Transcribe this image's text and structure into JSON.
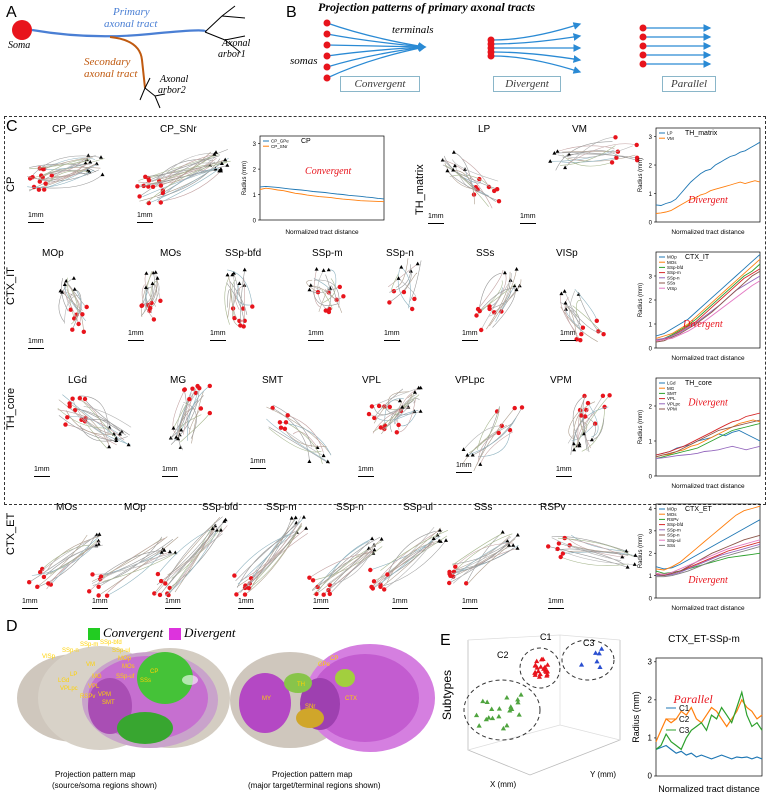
{
  "panel_a": {
    "letter": "A",
    "soma": "Soma",
    "primary": "Primary\naxonal  tract",
    "primary_l1": "Primary",
    "primary_l2": "axonal  tract",
    "secondary_l1": "Secondary",
    "secondary_l2": "axonal  tract",
    "arbor1_l1": "Axonal",
    "arbor1_l2": "arbor1",
    "arbor2_l1": "Axonal",
    "arbor2_l2": "arbor2",
    "colors": {
      "primary": "#4a7fd4",
      "secondary": "#c05a10",
      "soma": "#e8141c"
    }
  },
  "panel_b": {
    "letter": "B",
    "title": "Projection patterns of primary axonal tracts",
    "terminals": "terminals",
    "somas": "somas",
    "types": [
      "Convergent",
      "Divergent",
      "Parallel"
    ]
  },
  "panel_c": {
    "letter": "C",
    "scale": "1mm",
    "rows": [
      {
        "label": "CP",
        "regions": [
          "CP_GPe",
          "CP_SNr"
        ]
      },
      {
        "label": "TH_matrix",
        "regions": [
          "LP",
          "VM"
        ]
      },
      {
        "label": "CTX_IT",
        "regions": [
          "MOp",
          "MOs",
          "SSp-bfd",
          "SSp-m",
          "SSp-n",
          "SSs",
          "VISp"
        ]
      },
      {
        "label": "TH_core",
        "regions": [
          "LGd",
          "MG",
          "SMT",
          "VPL",
          "VPLpc",
          "VPM"
        ]
      },
      {
        "label": "CTX_ET",
        "regions": [
          "MOs",
          "MOp",
          "SSp-bfd",
          "SSp-m",
          "SSp-n",
          "SSp-ul",
          "SSs",
          "RSPv"
        ]
      }
    ]
  },
  "chart_data": [
    {
      "type": "line",
      "id": "cp",
      "title": "CP",
      "pattern": "Convergent",
      "xlabel": "Normalized tract distance",
      "ylabel": "Radius (mm)",
      "ylim": [
        0,
        3.3
      ],
      "yticks": [
        0,
        1,
        2,
        3
      ],
      "series": [
        {
          "name": "CP_GPe",
          "color": "#1f77b4",
          "values": [
            1.3,
            1.32,
            1.3,
            1.28,
            1.25,
            1.22,
            1.2,
            1.18,
            1.15,
            1.12,
            1.1,
            1.08,
            1.05,
            1.02,
            1.0,
            0.97,
            0.95,
            0.93,
            0.9,
            0.88,
            0.85,
            0.83
          ]
        },
        {
          "name": "CP_SNr",
          "color": "#ff7f0e",
          "values": [
            1.2,
            1.25,
            1.22,
            1.18,
            1.15,
            1.1,
            1.05,
            1.02,
            0.98,
            0.95,
            0.92,
            0.9,
            0.88,
            0.85,
            0.82,
            0.8,
            0.78,
            0.76,
            0.75,
            0.74,
            0.73,
            0.72
          ]
        }
      ]
    },
    {
      "type": "line",
      "id": "th_matrix",
      "title": "TH_matrix",
      "pattern": "Divergent",
      "xlabel": "Normalized tract distance",
      "ylabel": "Radius (mm)",
      "ylim": [
        0,
        3.3
      ],
      "yticks": [
        0,
        1,
        2,
        3
      ],
      "series": [
        {
          "name": "LP",
          "color": "#1f77b4",
          "values": [
            0.6,
            0.58,
            0.65,
            0.7,
            0.8,
            1.0,
            1.2,
            1.4,
            1.55,
            1.7,
            1.8,
            1.85,
            2.0,
            2.1,
            2.2,
            2.3,
            2.35,
            2.45,
            2.5,
            2.6,
            2.7,
            2.8
          ]
        },
        {
          "name": "VM",
          "color": "#ff7f0e",
          "values": [
            0.3,
            0.32,
            0.35,
            0.4,
            0.5,
            0.6,
            0.7,
            0.8,
            0.85,
            0.95,
            1.0,
            1.1,
            1.15,
            1.2,
            1.25,
            1.3,
            1.35,
            1.4,
            1.35,
            1.4,
            1.45,
            1.4
          ]
        }
      ]
    },
    {
      "type": "line",
      "id": "ctx_it",
      "title": "CTX_IT",
      "pattern": "Divergent",
      "xlabel": "Normalized tract distance",
      "ylabel": "Radius (mm)",
      "ylim": [
        0,
        4
      ],
      "yticks": [
        0,
        1,
        2,
        3
      ],
      "series": [
        {
          "name": "MOp",
          "color": "#1f77b4",
          "values": [
            0.5,
            0.6,
            0.8,
            1.0,
            1.2,
            1.5,
            1.8,
            2.1,
            2.4,
            2.7,
            3.0,
            3.3,
            3.6,
            3.9
          ]
        },
        {
          "name": "MOs",
          "color": "#ff7f0e",
          "values": [
            0.4,
            0.5,
            0.6,
            0.8,
            1.0,
            1.3,
            1.6,
            1.9,
            2.2,
            2.5,
            2.8,
            3.1,
            3.4,
            3.7
          ]
        },
        {
          "name": "SSp-bfd",
          "color": "#2ca02c",
          "values": [
            0.3,
            0.4,
            0.55,
            0.75,
            0.95,
            1.2,
            1.5,
            1.8,
            2.1,
            2.4,
            2.7,
            3.0,
            3.2,
            3.5
          ]
        },
        {
          "name": "SSp-m",
          "color": "#d62728",
          "values": [
            0.3,
            0.35,
            0.5,
            0.7,
            0.9,
            1.1,
            1.4,
            1.7,
            2.0,
            2.3,
            2.6,
            2.9,
            3.1,
            3.3
          ]
        },
        {
          "name": "SSp-n",
          "color": "#9467bd",
          "values": [
            0.35,
            0.4,
            0.5,
            0.65,
            0.85,
            1.05,
            1.3,
            1.55,
            1.8,
            2.1,
            2.4,
            2.6,
            2.8,
            3.0
          ]
        },
        {
          "name": "SSs",
          "color": "#8c564b",
          "values": [
            0.25,
            0.3,
            0.45,
            0.6,
            0.8,
            1.0,
            1.25,
            1.5,
            1.8,
            2.1,
            2.4,
            2.7,
            3.0,
            3.2
          ]
        },
        {
          "name": "VISp",
          "color": "#e377c2",
          "values": [
            0.3,
            0.35,
            0.4,
            0.55,
            0.7,
            0.9,
            1.1,
            1.35,
            1.6,
            1.85,
            2.1,
            2.35,
            2.6,
            2.8
          ]
        }
      ]
    },
    {
      "type": "line",
      "id": "th_core",
      "title": "TH_core",
      "pattern": "Divergent",
      "xlabel": "Normalized tract distance",
      "ylabel": "Radius (mm)",
      "ylim": [
        0,
        2.8
      ],
      "yticks": [
        0,
        1,
        2
      ],
      "series": [
        {
          "name": "LGd",
          "color": "#1f77b4",
          "values": [
            0.6,
            0.65,
            0.7,
            0.8,
            0.85,
            0.9,
            1.0,
            1.05,
            1.1,
            1.2,
            1.15,
            1.25,
            1.3,
            1.2,
            1.1,
            1.0
          ]
        },
        {
          "name": "MG",
          "color": "#ff7f0e",
          "values": [
            0.55,
            0.6,
            0.62,
            0.7,
            0.75,
            0.85,
            0.9,
            1.0,
            1.1,
            1.2,
            1.3,
            1.4,
            1.5,
            1.55,
            1.6,
            1.55
          ]
        },
        {
          "name": "SMT",
          "color": "#2ca02c",
          "values": [
            0.5,
            0.55,
            0.6,
            0.65,
            0.7,
            0.75,
            0.8,
            0.9,
            1.0,
            1.1,
            1.2,
            1.3,
            1.35,
            1.4,
            1.45,
            1.5
          ]
        },
        {
          "name": "VPL",
          "color": "#d62728",
          "values": [
            0.6,
            0.65,
            0.7,
            0.78,
            0.85,
            0.95,
            1.05,
            1.15,
            1.25,
            1.35,
            1.45,
            1.55,
            1.6,
            1.7,
            1.75,
            1.8
          ]
        },
        {
          "name": "VPLpc",
          "color": "#9467bd",
          "values": [
            0.5,
            0.52,
            0.55,
            0.58,
            0.6,
            0.62,
            0.65,
            0.7,
            0.72,
            0.75,
            0.8,
            0.85,
            0.8,
            0.75,
            0.8,
            0.85
          ]
        },
        {
          "name": "VPM",
          "color": "#8c564b",
          "values": [
            0.55,
            0.6,
            0.65,
            0.7,
            0.8,
            0.9,
            1.0,
            1.1,
            1.2,
            1.3,
            1.35,
            1.4,
            1.45,
            1.5,
            1.55,
            1.6
          ]
        }
      ]
    },
    {
      "type": "line",
      "id": "ctx_et",
      "title": "CTX_ET",
      "pattern": "Divergent",
      "xlabel": "Normalized tract distance",
      "ylabel": "Radius (mm)",
      "ylim": [
        0,
        4.2
      ],
      "yticks": [
        0,
        1,
        2,
        3,
        4
      ],
      "series": [
        {
          "name": "MOp",
          "color": "#1f77b4",
          "values": [
            1.4,
            1.3,
            1.35,
            1.5,
            1.7,
            1.9,
            2.1,
            2.3,
            2.5,
            2.7,
            2.9,
            3.1,
            3.3,
            3.5
          ]
        },
        {
          "name": "MOs",
          "color": "#ff7f0e",
          "values": [
            1.3,
            1.25,
            1.4,
            1.6,
            1.9,
            2.2,
            2.5,
            2.8,
            3.1,
            3.4,
            3.7,
            3.9,
            4.0,
            4.1
          ]
        },
        {
          "name": "RSPv",
          "color": "#2ca02c",
          "values": [
            1.2,
            1.1,
            1.15,
            1.2,
            1.3,
            1.4,
            1.5,
            1.6,
            1.7,
            1.8,
            1.85,
            1.9,
            1.95,
            2.0
          ]
        },
        {
          "name": "SSp-bfd",
          "color": "#d62728",
          "values": [
            1.1,
            1.05,
            1.1,
            1.2,
            1.35,
            1.5,
            1.65,
            1.8,
            1.95,
            2.1,
            2.2,
            2.3,
            2.4,
            2.5
          ]
        },
        {
          "name": "SSp-m",
          "color": "#9467bd",
          "values": [
            1.0,
            1.0,
            1.05,
            1.15,
            1.3,
            1.45,
            1.6,
            1.75,
            1.9,
            2.0,
            2.1,
            2.2,
            2.3,
            2.4
          ]
        },
        {
          "name": "SSp-n",
          "color": "#8c564b",
          "values": [
            1.05,
            1.0,
            1.1,
            1.2,
            1.4,
            1.6,
            1.8,
            2.0,
            2.15,
            2.3,
            2.45,
            2.6,
            2.7,
            2.8
          ]
        },
        {
          "name": "SSp-ul",
          "color": "#e377c2",
          "values": [
            1.1,
            1.05,
            1.15,
            1.3,
            1.45,
            1.6,
            1.75,
            1.9,
            2.05,
            2.2,
            2.3,
            2.4,
            2.5,
            2.6
          ]
        },
        {
          "name": "SSs",
          "color": "#7f7f7f",
          "values": [
            0.95,
            0.95,
            1.0,
            1.1,
            1.2,
            1.35,
            1.5,
            1.65,
            1.8,
            1.9,
            2.0,
            2.1,
            2.2,
            2.3
          ]
        }
      ]
    },
    {
      "type": "line",
      "id": "ctx_et_sspm",
      "title": "CTX_ET-SSp-m",
      "pattern": "Parallel",
      "xlabel": "Normalized tract distance",
      "ylabel": "Radius (mm)",
      "ylim": [
        0,
        3.1
      ],
      "yticks": [
        0,
        1,
        2,
        3
      ],
      "series": [
        {
          "name": "C1",
          "color": "#1f77b4",
          "values": [
            0.7,
            0.75,
            0.8,
            0.7,
            0.6,
            0.65,
            0.55,
            0.6,
            0.5,
            0.55,
            0.5,
            0.45,
            0.5,
            0.55,
            0.5,
            0.45,
            0.5,
            0.48,
            0.5,
            0.45,
            0.5,
            0.45
          ]
        },
        {
          "name": "C2",
          "color": "#ff7f0e",
          "values": [
            0.9,
            1.2,
            1.5,
            1.4,
            1.5,
            1.7,
            1.6,
            1.8,
            1.5,
            1.4,
            1.6,
            1.8,
            1.7,
            1.5,
            1.3,
            1.5,
            1.7,
            2.0,
            1.8,
            1.7,
            1.5,
            1.6
          ]
        },
        {
          "name": "C3",
          "color": "#2ca02c",
          "values": [
            0.7,
            0.8,
            1.1,
            0.9,
            0.8,
            0.7,
            1.0,
            1.2,
            1.3,
            1.4,
            1.2,
            1.6,
            1.5,
            1.8,
            1.6,
            1.4,
            1.8,
            2.2,
            1.6,
            1.3,
            1.4,
            1.2
          ]
        }
      ]
    }
  ],
  "panel_d": {
    "letter": "D",
    "legend": [
      "Convergent",
      "Divergent"
    ],
    "legend_colors": [
      "#22cc22",
      "#dd33dd"
    ],
    "map1_l1": "Projection pattern map",
    "map1_l2": "(source/soma regions shown)",
    "map2_l1": "Projection pattern map",
    "map2_l2": "(major target/terminal regions shown)",
    "map1_labels": [
      "VISp",
      "SSp-n",
      "SSp-m",
      "SSp-bfd",
      "SSp-ul",
      "MOp",
      "MOs",
      "CP",
      "SSs",
      "VM",
      "MG",
      "LP",
      "LGd",
      "VPL",
      "RSPv",
      "VPM",
      "SMT",
      "VPLpc",
      "SSp-uf"
    ],
    "map2_labels": [
      "CP",
      "GPe",
      "TH",
      "MY",
      "SNr",
      "CTX"
    ]
  },
  "panel_e": {
    "letter": "E",
    "axis_title": "Subtypes",
    "clusters": [
      "C1",
      "C2",
      "C3"
    ],
    "x_axis": "X (mm)",
    "y_axis": "Y (mm)"
  }
}
